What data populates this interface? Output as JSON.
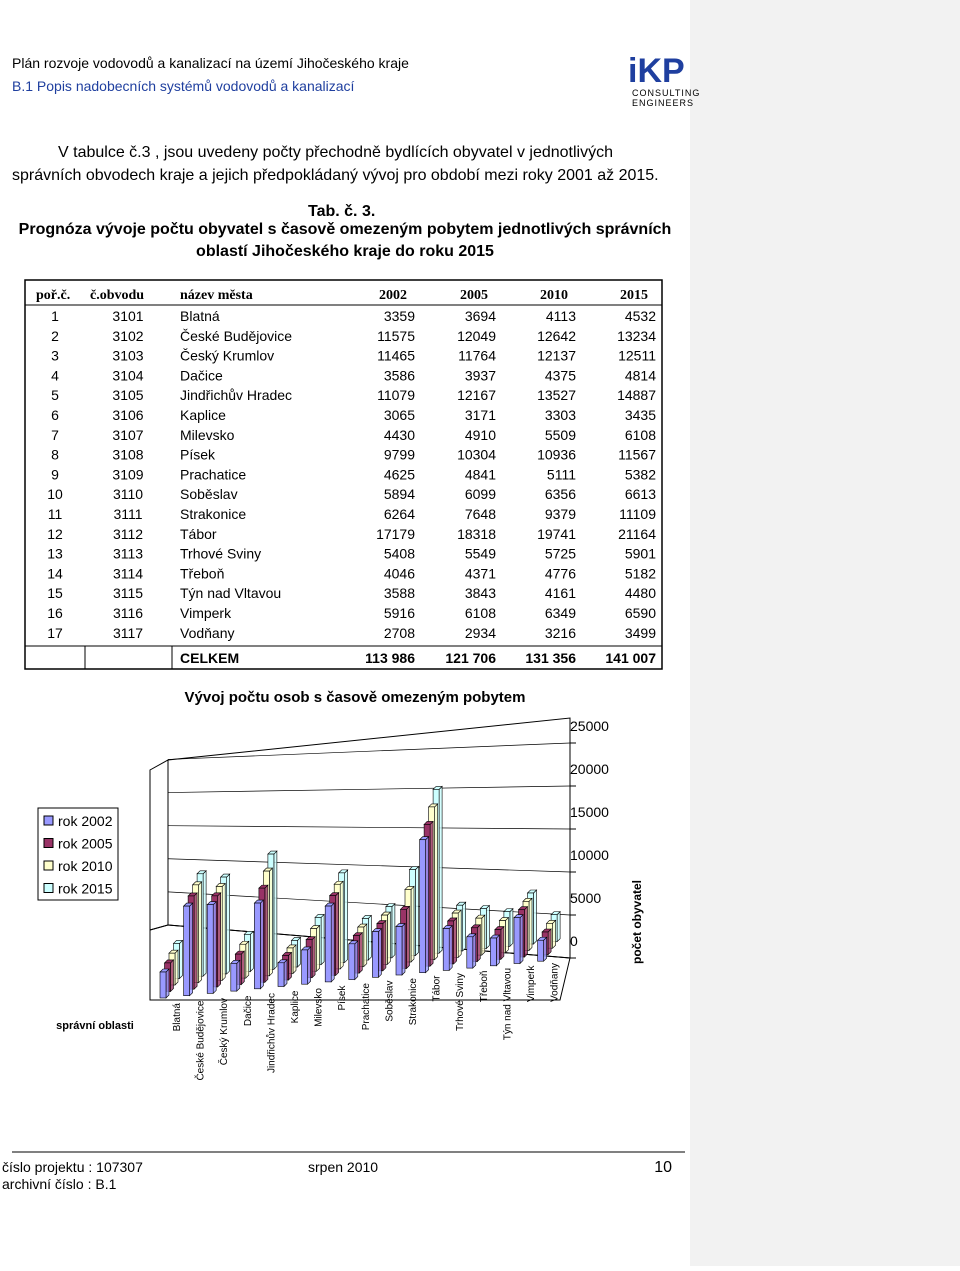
{
  "header": {
    "title": "Plán rozvoje vodovodů a kanalizací na území Jihočeského kraje",
    "subtitle": "B.1 Popis nadobecních systémů vodovodů a kanalizací",
    "logo": "iKP",
    "logo_sub1": "CONSULTING",
    "logo_sub2": "ENGINEERS"
  },
  "intro": [
    "V tabulce č.3 , jsou uvedeny počty přechodně bydlících obyvatel v jednotlivých",
    "správních obvodech kraje a jejich předpokládaný vývoj pro období mezi roky 2001 až 2015."
  ],
  "table_caption": [
    "Tab. č. 3.",
    "Prognóza vývoje počtu obyvatel s časově omezeným pobytem jednotlivých správních",
    "oblastí Jihočeského kraje do roku 2015"
  ],
  "table": {
    "headers": [
      "poř.č.",
      "č.obvodu",
      "název města",
      "2002",
      "2005",
      "2010",
      "2015"
    ],
    "rows": [
      [
        1,
        3101,
        "Blatná",
        3359,
        3694,
        4113,
        4532
      ],
      [
        2,
        3102,
        "České Budějovice",
        11575,
        12049,
        12642,
        13234
      ],
      [
        3,
        3103,
        "Český Krumlov",
        11465,
        11764,
        12137,
        12511
      ],
      [
        4,
        3104,
        "Dačice",
        3586,
        3937,
        4375,
        4814
      ],
      [
        5,
        3105,
        "Jindřichův Hradec",
        11079,
        12167,
        13527,
        14887
      ],
      [
        6,
        3106,
        "Kaplice",
        3065,
        3171,
        3303,
        3435
      ],
      [
        7,
        3107,
        "Milevsko",
        4430,
        4910,
        5509,
        6108
      ],
      [
        8,
        3108,
        "Písek",
        9799,
        10304,
        10936,
        11567
      ],
      [
        9,
        3109,
        "Prachatice",
        4625,
        4841,
        5111,
        5382
      ],
      [
        10,
        3110,
        "Soběslav",
        5894,
        6099,
        6356,
        6613
      ],
      [
        11,
        3111,
        "Strakonice",
        6264,
        7648,
        9379,
        11109
      ],
      [
        12,
        3112,
        "Tábor",
        17179,
        18318,
        19741,
        21164
      ],
      [
        13,
        3113,
        "Trhové Sviny",
        5408,
        5549,
        5725,
        5901
      ],
      [
        14,
        3114,
        "Třeboň",
        4046,
        4371,
        4776,
        5182
      ],
      [
        15,
        3115,
        "Týn nad Vltavou",
        3588,
        3843,
        4161,
        4480
      ],
      [
        16,
        3116,
        "Vimperk",
        5916,
        6108,
        6349,
        6590
      ],
      [
        17,
        3117,
        "Vodňany",
        2708,
        2934,
        3216,
        3499
      ]
    ],
    "total": [
      "CELKEM",
      "113 986",
      "121 706",
      "131 356",
      "141 007"
    ]
  },
  "chart_data": {
    "type": "bar3d",
    "title": "Vývoj počtu osob s časově omezeným pobytem",
    "x_label": "správní oblasti",
    "y_label": "počet obyvatel",
    "categories": [
      "Blatná",
      "České Budějovice",
      "Český Krumlov",
      "Dačice",
      "Jindřichův Hradec",
      "Kaplice",
      "Milevsko",
      "Písek",
      "Prachatice",
      "Soběslav",
      "Strakonice",
      "Tábor",
      "Trhové Sviny",
      "Třeboň",
      "Týn nad Vltavou",
      "Vimperk",
      "Vodňany"
    ],
    "series": [
      {
        "name": "rok 2002",
        "color": "#9999ff",
        "values": [
          3359,
          11575,
          11465,
          3586,
          11079,
          3065,
          4430,
          9799,
          4625,
          5894,
          6264,
          17179,
          5408,
          4046,
          3588,
          5916,
          2708
        ]
      },
      {
        "name": "rok 2005",
        "color": "#993366",
        "values": [
          3694,
          12049,
          11764,
          3937,
          12167,
          3171,
          4910,
          10304,
          4841,
          6099,
          7648,
          18318,
          5549,
          4371,
          3843,
          6108,
          2934
        ]
      },
      {
        "name": "rok 2010",
        "color": "#ffffcc",
        "values": [
          4113,
          12642,
          12137,
          4375,
          13527,
          3303,
          5509,
          10936,
          5111,
          6356,
          9379,
          19741,
          5725,
          4776,
          4161,
          6349,
          3216
        ]
      },
      {
        "name": "rok 2015",
        "color": "#ccffff",
        "values": [
          4532,
          13234,
          12511,
          4814,
          14887,
          3435,
          6108,
          11567,
          5382,
          6613,
          11109,
          21164,
          5901,
          5182,
          4480,
          6590,
          3499
        ]
      }
    ],
    "ylim": [
      0,
      25000
    ],
    "yticks": [
      0,
      5000,
      10000,
      15000,
      20000,
      25000
    ],
    "grid": true,
    "legend": "left"
  },
  "footer": {
    "project": "číslo projektu : 107307",
    "date": "srpen 2010",
    "page": "10",
    "archive": "archivní číslo : B.1"
  }
}
